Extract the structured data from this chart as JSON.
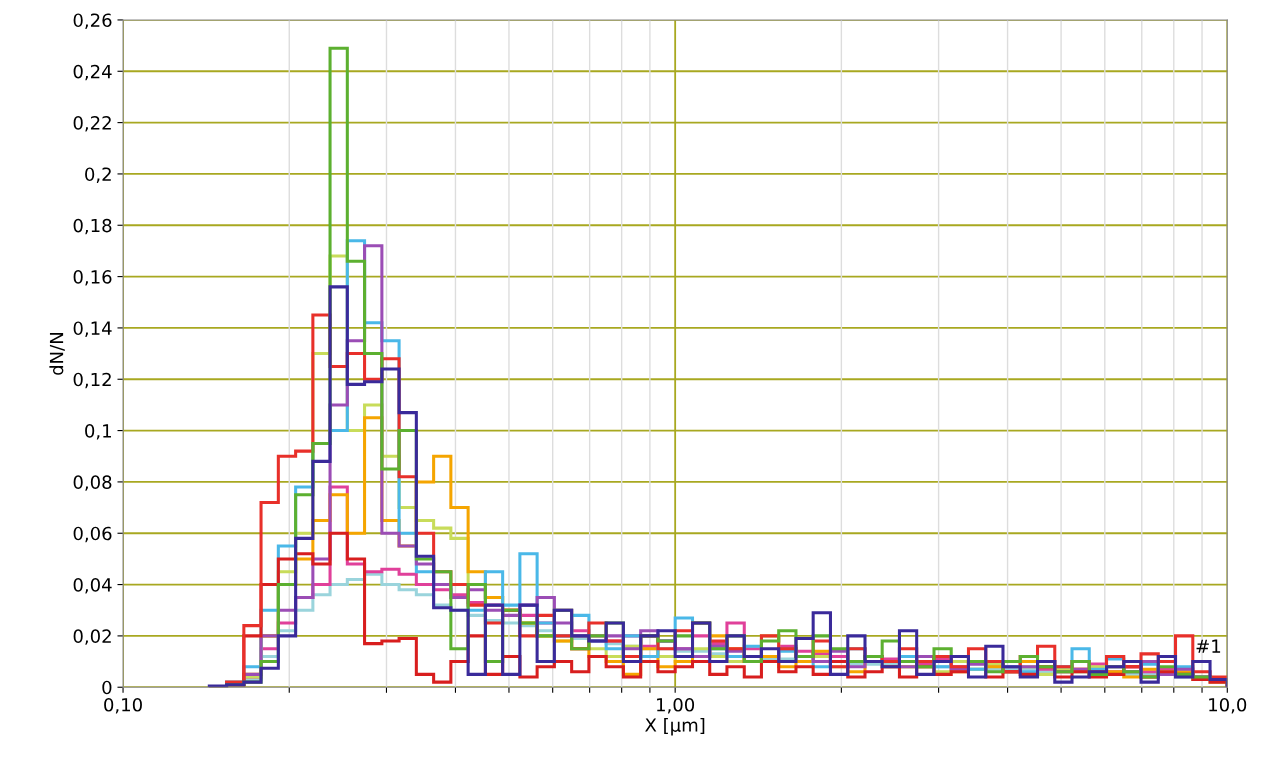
{
  "chart_data": {
    "type": "histogram",
    "xlabel": "X [µm]",
    "ylabel": "dN/N",
    "log": "x",
    "grid": true,
    "bins": [
      0.1433,
      0.154,
      0.1655,
      0.1778,
      0.1911,
      0.2054,
      0.2207,
      0.2371,
      0.2548,
      0.2738,
      0.2943,
      0.3162,
      0.3398,
      0.3652,
      0.3924,
      0.4217,
      0.4532,
      0.487,
      0.5233,
      0.5623,
      0.6043,
      0.6494,
      0.6978,
      0.7499,
      0.8058,
      0.866,
      0.9306,
      1,
      1.075,
      1.155,
      1.241,
      1.334,
      1.433,
      1.54,
      1.655,
      1.778,
      1.911,
      2.054,
      2.207,
      2.371,
      2.548,
      2.738,
      2.943,
      3.162,
      3.398,
      3.652,
      3.924,
      4.217,
      4.532,
      4.87,
      5.233,
      5.623,
      6.043,
      6.494,
      6.978,
      7.499,
      8.058,
      8.66,
      9.306,
      10
    ],
    "xlim": [
      0.1,
      10
    ],
    "xticks": [
      {
        "value": 0.1,
        "label": "0,10"
      },
      {
        "value": 0.2,
        "label": null
      },
      {
        "value": 0.3,
        "label": null
      },
      {
        "value": 0.4,
        "label": null
      },
      {
        "value": 0.5,
        "label": null
      },
      {
        "value": 0.6,
        "label": null
      },
      {
        "value": 0.7,
        "label": null
      },
      {
        "value": 0.8,
        "label": null
      },
      {
        "value": 0.9,
        "label": null
      },
      {
        "value": 1,
        "label": "1,00"
      },
      {
        "value": 2,
        "label": null
      },
      {
        "value": 3,
        "label": null
      },
      {
        "value": 4,
        "label": null
      },
      {
        "value": 5,
        "label": null
      },
      {
        "value": 6,
        "label": null
      },
      {
        "value": 7,
        "label": null
      },
      {
        "value": 8,
        "label": null
      },
      {
        "value": 9,
        "label": null
      },
      {
        "value": 10,
        "label": "10,0"
      }
    ],
    "ylim": [
      0,
      0.26
    ],
    "yticks": [
      0,
      {
        "value": 0.02,
        "label": "0,02"
      },
      {
        "value": 0.04,
        "label": "0,04"
      },
      {
        "value": 0.06,
        "label": "0,06"
      },
      {
        "value": 0.08,
        "label": "0,08"
      },
      {
        "value": 0.1,
        "label": "0,1"
      },
      {
        "value": 0.12,
        "label": "0,12"
      },
      {
        "value": 0.14,
        "label": "0,14"
      },
      {
        "value": 0.16,
        "label": "0,16"
      },
      {
        "value": 0.18,
        "label": "0,18"
      },
      {
        "value": 0.2,
        "label": "0,2"
      },
      {
        "value": 0.22,
        "label": "0,22"
      },
      {
        "value": 0.24,
        "label": "0,24"
      },
      {
        "value": 0.26,
        "label": "0,26"
      }
    ],
    "annotations": [
      "#1"
    ],
    "series": [
      {
        "color": "#9ad4dc",
        "values": [
          0,
          0.001,
          0.003,
          0.012,
          0.022,
          0.03,
          0.036,
          0.04,
          0.042,
          0.044,
          0.04,
          0.038,
          0.036,
          0.032,
          0.03,
          0.028,
          0.026,
          0.025,
          0.024,
          0.022,
          0.02,
          0.019,
          0.018,
          0.017,
          0.016,
          0.015,
          0.015,
          0.014,
          0.014,
          0.013,
          0.012,
          0.012,
          0.011,
          0.011,
          0.01,
          0.01,
          0.01,
          0.009,
          0.009,
          0.009,
          0.008,
          0.008,
          0.008,
          0.008,
          0.007,
          0.007,
          0.007,
          0.007,
          0.006,
          0.006,
          0.006,
          0.006,
          0.005,
          0.005,
          0.005,
          0.005,
          0.004,
          0.004,
          0.003
        ]
      },
      {
        "color": "#e0409a",
        "values": [
          0,
          0.001,
          0.004,
          0.015,
          0.025,
          0.035,
          0.04,
          0.078,
          0.048,
          0.045,
          0.046,
          0.044,
          0.04,
          0.038,
          0.036,
          0.033,
          0.032,
          0.03,
          0.028,
          0.025,
          0.03,
          0.022,
          0.02,
          0.018,
          0.02,
          0.016,
          0.018,
          0.015,
          0.02,
          0.017,
          0.025,
          0.015,
          0.012,
          0.016,
          0.014,
          0.013,
          0.012,
          0.01,
          0.012,
          0.011,
          0.01,
          0.009,
          0.011,
          0.008,
          0.01,
          0.009,
          0.008,
          0.01,
          0.007,
          0.008,
          0.007,
          0.009,
          0.006,
          0.008,
          0.006,
          0.007,
          0.005,
          0.004,
          0.003
        ]
      },
      {
        "color": "#c8dc5a",
        "values": [
          0,
          0.001,
          0.004,
          0.02,
          0.045,
          0.06,
          0.13,
          0.168,
          0.1,
          0.11,
          0.09,
          0.07,
          0.065,
          0.062,
          0.058,
          0.04,
          0.035,
          0.03,
          0.025,
          0.02,
          0.018,
          0.02,
          0.015,
          0.012,
          0.016,
          0.02,
          0.012,
          0.01,
          0.015,
          0.012,
          0.01,
          0.012,
          0.02,
          0.015,
          0.01,
          0.012,
          0.008,
          0.01,
          0.012,
          0.008,
          0.01,
          0.008,
          0.006,
          0.01,
          0.007,
          0.009,
          0.006,
          0.008,
          0.005,
          0.007,
          0.006,
          0.008,
          0.005,
          0.006,
          0.004,
          0.006,
          0.005,
          0.003,
          0.002
        ]
      },
      {
        "color": "#f5a500",
        "values": [
          0,
          0.001,
          0.005,
          0.02,
          0.04,
          0.05,
          0.065,
          0.075,
          0.06,
          0.105,
          0.065,
          0.055,
          0.08,
          0.09,
          0.07,
          0.045,
          0.035,
          0.03,
          0.025,
          0.02,
          0.018,
          0.015,
          0.012,
          0.01,
          0.005,
          0.015,
          0.008,
          0.01,
          0.012,
          0.02,
          0.015,
          0.01,
          0.012,
          0.008,
          0.01,
          0.014,
          0.01,
          0.006,
          0.012,
          0.01,
          0.008,
          0.01,
          0.012,
          0.006,
          0.01,
          0.008,
          0.006,
          0.01,
          0.008,
          0.006,
          0.007,
          0.005,
          0.006,
          0.004,
          0.007,
          0.005,
          0.006,
          0.004,
          0.003
        ]
      },
      {
        "color": "#4ab8e8",
        "values": [
          0,
          0.002,
          0.008,
          0.03,
          0.055,
          0.078,
          0.095,
          0.1,
          0.174,
          0.142,
          0.135,
          0.06,
          0.045,
          0.04,
          0.035,
          0.03,
          0.045,
          0.032,
          0.052,
          0.025,
          0.02,
          0.028,
          0.018,
          0.015,
          0.02,
          0.012,
          0.018,
          0.027,
          0.025,
          0.015,
          0.012,
          0.016,
          0.01,
          0.014,
          0.012,
          0.008,
          0.01,
          0.015,
          0.012,
          0.01,
          0.012,
          0.01,
          0.008,
          0.012,
          0.007,
          0.01,
          0.008,
          0.006,
          0.01,
          0.008,
          0.015,
          0.007,
          0.011,
          0.006,
          0.009,
          0.005,
          0.008,
          0.004,
          0.003
        ]
      },
      {
        "color": "#9b4db5",
        "values": [
          0,
          0.001,
          0.005,
          0.02,
          0.03,
          0.035,
          0.05,
          0.11,
          0.135,
          0.172,
          0.06,
          0.055,
          0.048,
          0.04,
          0.035,
          0.038,
          0.03,
          0.028,
          0.032,
          0.035,
          0.025,
          0.02,
          0.018,
          0.02,
          0.015,
          0.022,
          0.018,
          0.015,
          0.012,
          0.016,
          0.014,
          0.012,
          0.01,
          0.015,
          0.012,
          0.01,
          0.014,
          0.008,
          0.012,
          0.01,
          0.008,
          0.012,
          0.01,
          0.007,
          0.009,
          0.01,
          0.006,
          0.008,
          0.01,
          0.006,
          0.007,
          0.005,
          0.008,
          0.006,
          0.01,
          0.005,
          0.007,
          0.004,
          0.003
        ]
      },
      {
        "color": "#d81e1e",
        "values": [
          0,
          0.001,
          0.02,
          0.04,
          0.05,
          0.052,
          0.048,
          0.06,
          0.05,
          0.017,
          0.018,
          0.019,
          0.005,
          0.002,
          0.01,
          0.02,
          0.005,
          0.012,
          0.004,
          0.008,
          0.01,
          0.006,
          0.012,
          0.008,
          0.004,
          0.01,
          0.006,
          0.008,
          0.01,
          0.005,
          0.008,
          0.004,
          0.01,
          0.006,
          0.008,
          0.005,
          0.01,
          0.004,
          0.006,
          0.008,
          0.004,
          0.008,
          0.005,
          0.006,
          0.01,
          0.004,
          0.006,
          0.005,
          0.008,
          0.004,
          0.006,
          0.004,
          0.005,
          0.008,
          0.004,
          0.006,
          0.005,
          0.003,
          0.002
        ]
      },
      {
        "color": "#e8302a",
        "values": [
          0,
          0.002,
          0.024,
          0.072,
          0.09,
          0.092,
          0.145,
          0.125,
          0.13,
          0.12,
          0.128,
          0.082,
          0.06,
          0.045,
          0.04,
          0.032,
          0.025,
          0.03,
          0.02,
          0.028,
          0.02,
          0.015,
          0.025,
          0.018,
          0.012,
          0.02,
          0.015,
          0.022,
          0.025,
          0.018,
          0.015,
          0.01,
          0.02,
          0.015,
          0.012,
          0.018,
          0.008,
          0.015,
          0.012,
          0.01,
          0.015,
          0.01,
          0.012,
          0.008,
          0.015,
          0.01,
          0.006,
          0.012,
          0.016,
          0.008,
          0.01,
          0.006,
          0.012,
          0.008,
          0.013,
          0.01,
          0.02,
          0.006,
          0.004
        ]
      },
      {
        "color": "#5cb030",
        "values": [
          0,
          0.001,
          0.002,
          0.01,
          0.04,
          0.075,
          0.095,
          0.249,
          0.166,
          0.13,
          0.085,
          0.1,
          0.05,
          0.045,
          0.015,
          0.04,
          0.01,
          0.03,
          0.025,
          0.02,
          0.03,
          0.015,
          0.02,
          0.025,
          0.01,
          0.02,
          0.018,
          0.02,
          0.025,
          0.015,
          0.02,
          0.01,
          0.018,
          0.022,
          0.012,
          0.02,
          0.015,
          0.01,
          0.012,
          0.018,
          0.01,
          0.008,
          0.015,
          0.012,
          0.01,
          0.006,
          0.01,
          0.012,
          0.008,
          0.006,
          0.01,
          0.005,
          0.008,
          0.006,
          0.004,
          0.008,
          0.005,
          0.004,
          0.003
        ]
      },
      {
        "color": "#3a2a9a",
        "values": [
          0.0005,
          0.001,
          0.002,
          0.0074,
          0.02,
          0.058,
          0.088,
          0.156,
          0.118,
          0.119,
          0.124,
          0.107,
          0.051,
          0.031,
          0.03,
          0.005,
          0.032,
          0.005,
          0.032,
          0.01,
          0.03,
          0.02,
          0.018,
          0.025,
          0.01,
          0.02,
          0.022,
          0.012,
          0.025,
          0.01,
          0.02,
          0.012,
          0.015,
          0.01,
          0.019,
          0.029,
          0.005,
          0.02,
          0.01,
          0.008,
          0.022,
          0.005,
          0.01,
          0.012,
          0.004,
          0.016,
          0.008,
          0.004,
          0.01,
          0.002,
          0.004,
          0.006,
          0.008,
          0.01,
          0.002,
          0.012,
          0.004,
          0.01,
          0.003
        ]
      }
    ]
  }
}
